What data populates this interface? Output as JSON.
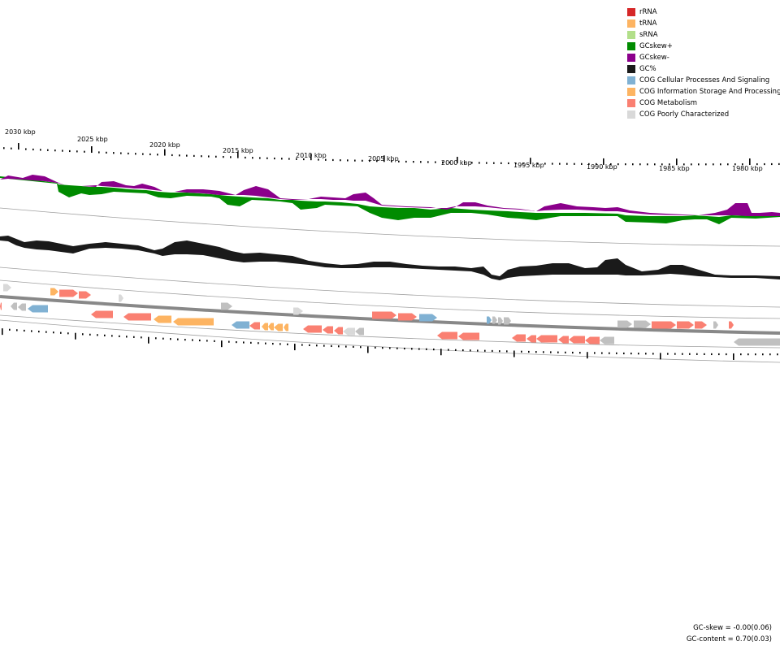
{
  "legend": [
    {
      "label": "rRNA",
      "color": "#d62728"
    },
    {
      "label": "tRNA",
      "color": "#fdb462"
    },
    {
      "label": "sRNA",
      "color": "#b2df8a"
    },
    {
      "label": "GCskew+",
      "color": "#008b00"
    },
    {
      "label": "GCskew-",
      "color": "#8b008b"
    },
    {
      "label": "GC%",
      "color": "#1a1a1a"
    },
    {
      "label": "COG Cellular Processes And Signaling",
      "color": "#80b1d3"
    },
    {
      "label": "COG Information Storage And Processing",
      "color": "#fdb462"
    },
    {
      "label": "COG Metabolism",
      "color": "#fa8072"
    },
    {
      "label": "COG Poorly Characterized",
      "color": "#d9d9d9"
    }
  ],
  "ticks": [
    {
      "label": "2030 kbp"
    },
    {
      "label": "2025 kbp"
    },
    {
      "label": "2020 kbp"
    },
    {
      "label": "2015 kbp"
    },
    {
      "label": "2010 kbp"
    },
    {
      "label": "2005 kbp"
    },
    {
      "label": "2000 kbp"
    },
    {
      "label": "1995 kbp"
    },
    {
      "label": "1990 kbp"
    },
    {
      "label": "1985 kbp"
    },
    {
      "label": "1980 kbp"
    }
  ],
  "stats": {
    "gc_skew": "GC-skew = -0.00(0.06)",
    "gc_content": "GC-content = 0.70(0.03)"
  }
}
